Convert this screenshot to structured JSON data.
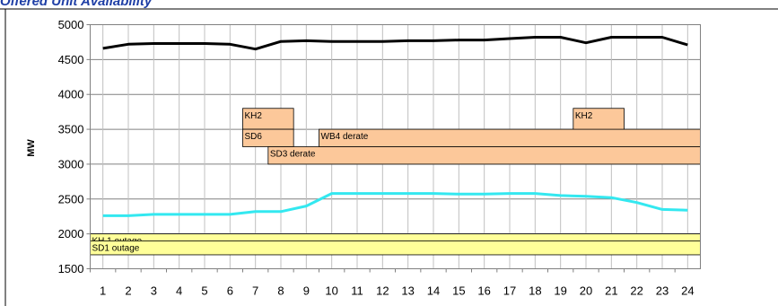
{
  "chart_data": {
    "type": "line",
    "title": "Offered Unit Availability",
    "ylabel": "MW",
    "xlabel": "",
    "x": [
      1,
      2,
      3,
      4,
      5,
      6,
      7,
      8,
      9,
      10,
      11,
      12,
      13,
      14,
      15,
      16,
      17,
      18,
      19,
      20,
      21,
      22,
      23,
      24
    ],
    "ylim": [
      1500,
      5000
    ],
    "yticks": [
      1500,
      2000,
      2500,
      3000,
      3500,
      4000,
      4500,
      5000
    ],
    "grid": true,
    "series": [
      {
        "color": "#000000",
        "values": [
          4660,
          4720,
          4730,
          4730,
          4730,
          4720,
          4650,
          4760,
          4770,
          4760,
          4760,
          4760,
          4770,
          4770,
          4780,
          4780,
          4800,
          4820,
          4820,
          4740,
          4820,
          4820,
          4820,
          4710
        ]
      },
      {
        "color": "#33e8f0",
        "values": [
          2260,
          2260,
          2280,
          2280,
          2280,
          2280,
          2320,
          2320,
          2400,
          2580,
          2580,
          2580,
          2580,
          2580,
          2570,
          2570,
          2580,
          2580,
          2550,
          2540,
          2520,
          2450,
          2350,
          2340
        ]
      }
    ],
    "outages": [
      {
        "label": "KH 1 outage",
        "start": 1,
        "end": 24,
        "y0": 1900,
        "y1": 2000,
        "color": "#ffff99"
      },
      {
        "label": "SD1 outage",
        "start": 1,
        "end": 24,
        "y0": 1700,
        "y1": 1900,
        "color": "#ffff99"
      },
      {
        "label": "KH2",
        "start": 7,
        "end": 8,
        "y0": 3500,
        "y1": 3800,
        "color": "#fcc89a"
      },
      {
        "label": "SD6",
        "start": 7,
        "end": 8,
        "y0": 3250,
        "y1": 3500,
        "color": "#fcc89a"
      },
      {
        "label": "WB4 derate",
        "start": 10,
        "end": 24,
        "y0": 3250,
        "y1": 3500,
        "color": "#fcc89a"
      },
      {
        "label": "SD3 derate",
        "start": 8,
        "end": 24,
        "y0": 3000,
        "y1": 3250,
        "color": "#fcc89a"
      },
      {
        "label": "KH2",
        "start": 20,
        "end": 21,
        "y0": 3500,
        "y1": 3800,
        "color": "#fcc89a"
      }
    ]
  }
}
